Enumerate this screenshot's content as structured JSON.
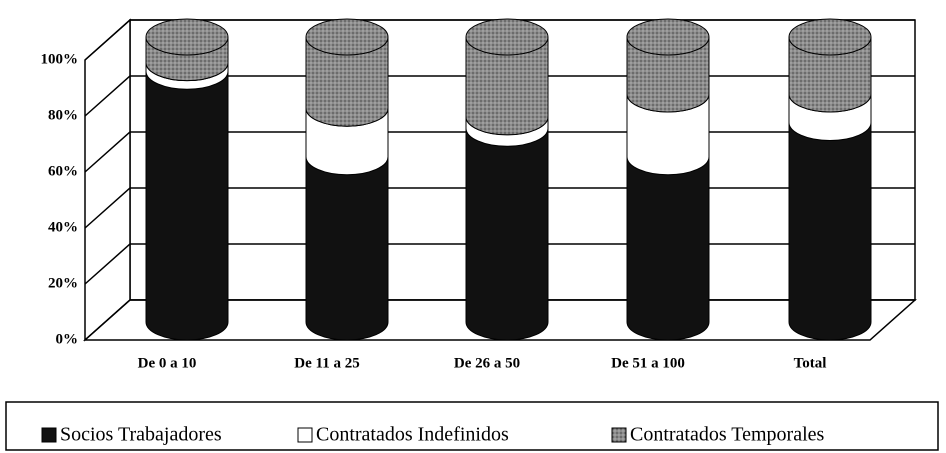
{
  "chart_data": {
    "type": "bar",
    "stacked": true,
    "categories": [
      "De 0 a 10",
      "De 11 a 25",
      "De 26 a 50",
      "De 51 a 100",
      "Total"
    ],
    "series": [
      {
        "name": "Socios Trabajadores",
        "color": "#111111",
        "values": [
          88,
          58,
          68,
          58,
          70
        ]
      },
      {
        "name": "Contratados Indefinidos",
        "color": "#ffffff",
        "values": [
          3,
          17,
          4,
          22,
          10
        ]
      },
      {
        "name": "Contratados Temporales",
        "color": "#8c8c8c",
        "values": [
          9,
          25,
          28,
          20,
          20
        ]
      }
    ],
    "ylim": [
      0,
      100
    ],
    "yticks": [
      {
        "value": 0,
        "label": "0%"
      },
      {
        "value": 20,
        "label": "20%"
      },
      {
        "value": 40,
        "label": "40%"
      },
      {
        "value": 60,
        "label": "60%"
      },
      {
        "value": 80,
        "label": "80%"
      },
      {
        "value": 100,
        "label": "100%"
      }
    ],
    "grid": true,
    "legend": "bottom"
  }
}
